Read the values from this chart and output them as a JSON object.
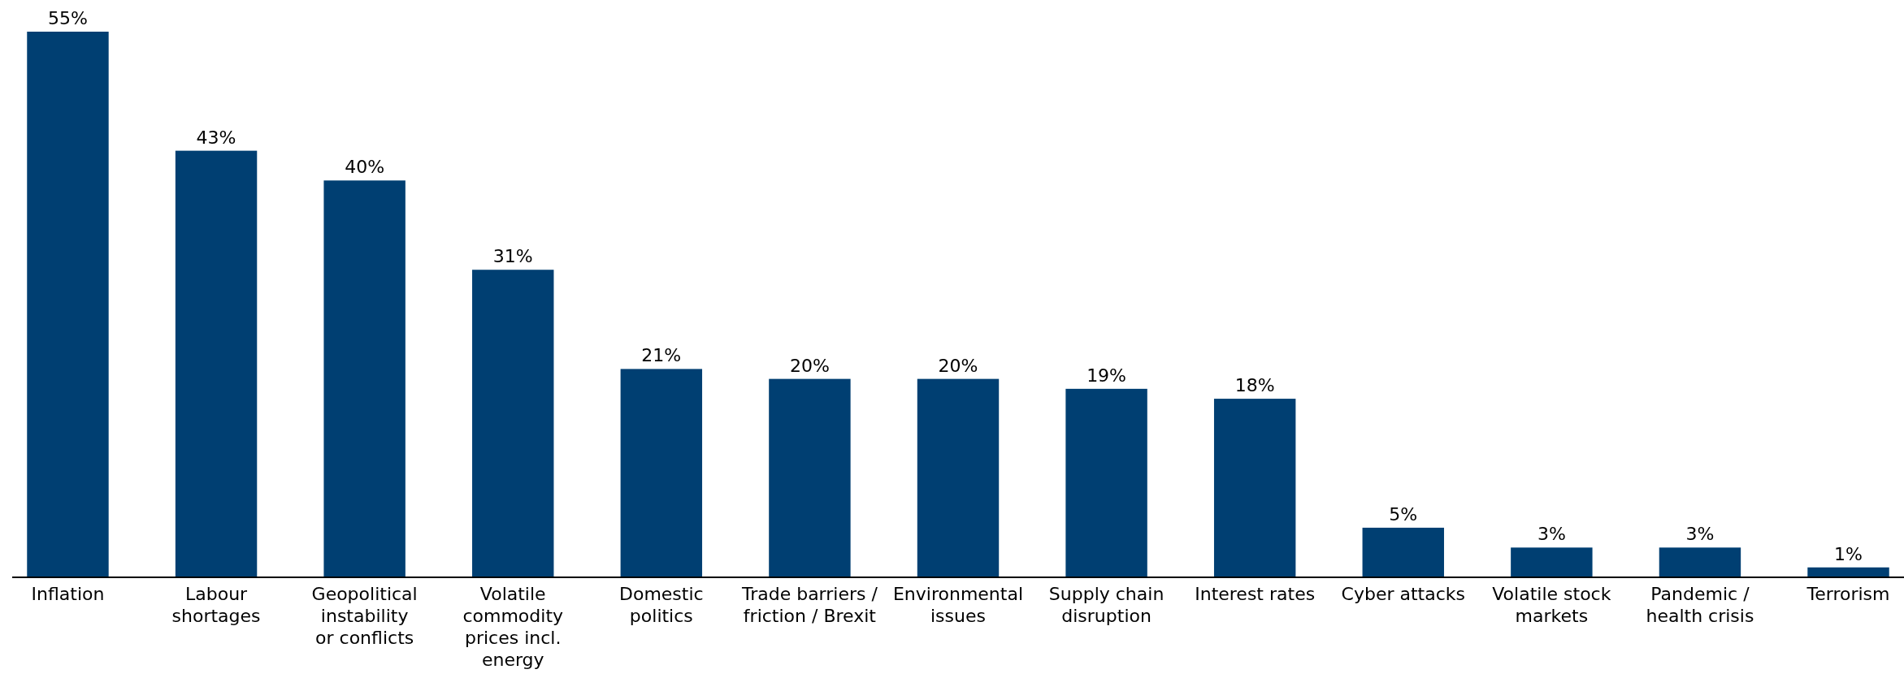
{
  "chart_data": {
    "type": "bar",
    "categories": [
      "Inflation",
      "Labour\nshortages",
      "Geopolitical\ninstability\nor conflicts",
      "Volatile\ncommodity\nprices incl.\nenergy",
      "Domestic\npolitics",
      "Trade barriers /\nfriction / Brexit",
      "Environmental\nissues",
      "Supply chain\ndisruption",
      "Interest rates",
      "Cyber attacks",
      "Volatile stock\nmarkets",
      "Pandemic /\nhealth crisis",
      "Terrorism"
    ],
    "values": [
      55,
      43,
      40,
      31,
      21,
      20,
      20,
      19,
      18,
      5,
      3,
      3,
      1
    ],
    "value_labels": [
      "55%",
      "43%",
      "40%",
      "31%",
      "21%",
      "20%",
      "20%",
      "19%",
      "18%",
      "5%",
      "3%",
      "3%",
      "1%"
    ],
    "color": "#003f72"
  }
}
